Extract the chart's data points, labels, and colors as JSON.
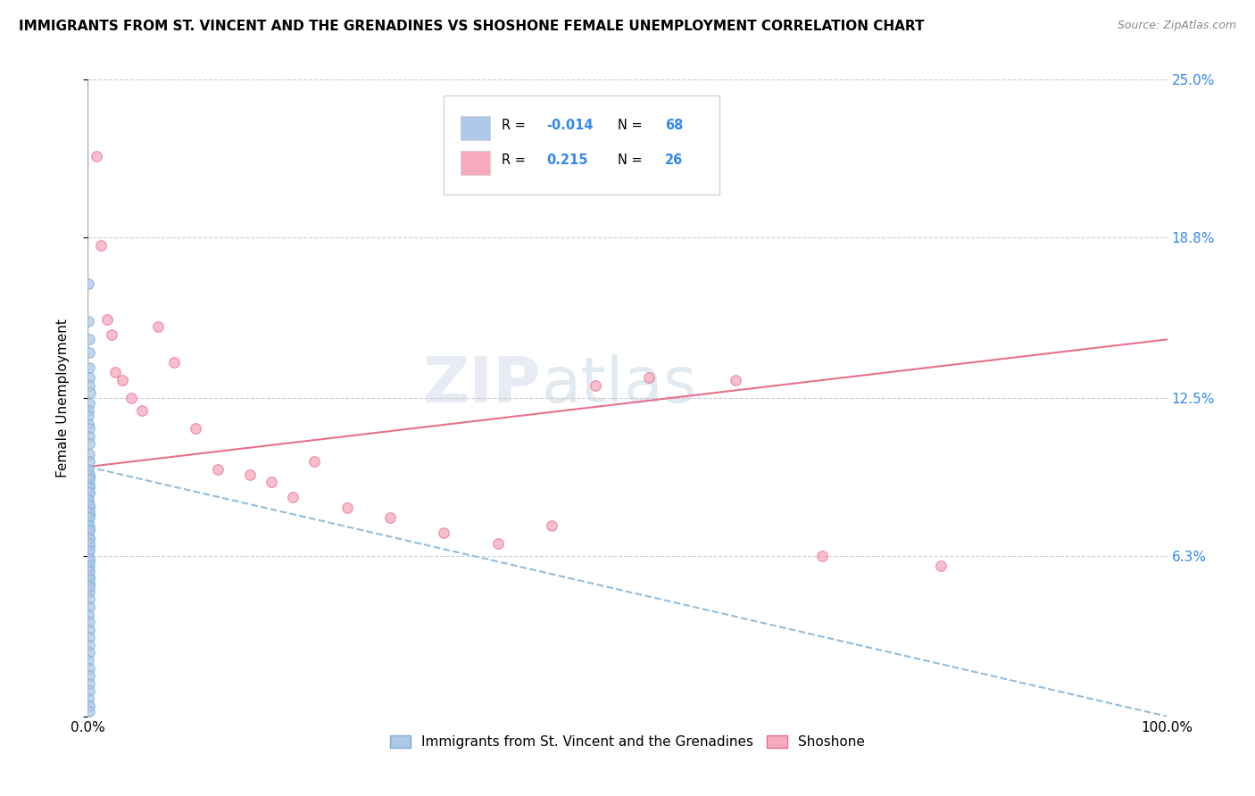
{
  "title": "IMMIGRANTS FROM ST. VINCENT AND THE GRENADINES VS SHOSHONE FEMALE UNEMPLOYMENT CORRELATION CHART",
  "source": "Source: ZipAtlas.com",
  "ylabel": "Female Unemployment",
  "xlim": [
    0.0,
    1.0
  ],
  "ylim": [
    0.0,
    0.25
  ],
  "yticks": [
    0.0,
    0.063,
    0.125,
    0.188,
    0.25
  ],
  "ytick_labels": [
    "",
    "6.3%",
    "12.5%",
    "18.8%",
    "25.0%"
  ],
  "xtick_labels": [
    "0.0%",
    "100.0%"
  ],
  "blue_R": "-0.014",
  "blue_N": "68",
  "pink_R": "0.215",
  "pink_N": "26",
  "blue_color": "#adc8e8",
  "pink_color": "#f5aabe",
  "blue_edge_color": "#7aaed4",
  "pink_edge_color": "#e8708a",
  "legend_blue_label": "Immigrants from St. Vincent and the Grenadines",
  "legend_pink_label": "Shoshone",
  "blue_scatter_x": [
    0.0005,
    0.0008,
    0.001,
    0.001,
    0.001,
    0.0012,
    0.0015,
    0.002,
    0.001,
    0.0007,
    0.0005,
    0.0008,
    0.001,
    0.001,
    0.0012,
    0.0015,
    0.001,
    0.0007,
    0.001,
    0.001,
    0.001,
    0.0008,
    0.001,
    0.001,
    0.0005,
    0.001,
    0.0015,
    0.001,
    0.0008,
    0.001,
    0.0005,
    0.001,
    0.001,
    0.001,
    0.0012,
    0.001,
    0.0008,
    0.001,
    0.001,
    0.0015,
    0.001,
    0.001,
    0.0008,
    0.001,
    0.001,
    0.0015,
    0.001,
    0.0007,
    0.001,
    0.001,
    0.001,
    0.0012,
    0.001,
    0.001,
    0.0005,
    0.001,
    0.0015,
    0.001,
    0.001,
    0.0012,
    0.001,
    0.0015,
    0.001,
    0.001,
    0.001,
    0.0012,
    0.001,
    0.001
  ],
  "blue_scatter_y": [
    0.17,
    0.155,
    0.148,
    0.143,
    0.137,
    0.133,
    0.13,
    0.127,
    0.123,
    0.12,
    0.118,
    0.115,
    0.113,
    0.11,
    0.107,
    0.103,
    0.1,
    0.097,
    0.094,
    0.091,
    0.088,
    0.085,
    0.082,
    0.079,
    0.076,
    0.073,
    0.07,
    0.067,
    0.064,
    0.061,
    0.058,
    0.055,
    0.052,
    0.049,
    0.046,
    0.043,
    0.04,
    0.037,
    0.034,
    0.031,
    0.028,
    0.025,
    0.022,
    0.019,
    0.016,
    0.013,
    0.01,
    0.007,
    0.004,
    0.002,
    0.095,
    0.093,
    0.09,
    0.088,
    0.085,
    0.083,
    0.08,
    0.078,
    0.075,
    0.073,
    0.07,
    0.068,
    0.065,
    0.062,
    0.059,
    0.057,
    0.054,
    0.051
  ],
  "pink_scatter_x": [
    0.008,
    0.012,
    0.018,
    0.022,
    0.025,
    0.032,
    0.04,
    0.05,
    0.065,
    0.08,
    0.1,
    0.12,
    0.15,
    0.17,
    0.19,
    0.21,
    0.24,
    0.28,
    0.33,
    0.38,
    0.43,
    0.47,
    0.52,
    0.6,
    0.68,
    0.79
  ],
  "pink_scatter_y": [
    0.22,
    0.185,
    0.156,
    0.15,
    0.135,
    0.132,
    0.125,
    0.12,
    0.153,
    0.139,
    0.113,
    0.097,
    0.095,
    0.092,
    0.086,
    0.1,
    0.082,
    0.078,
    0.072,
    0.068,
    0.075,
    0.13,
    0.133,
    0.132,
    0.063,
    0.059
  ],
  "blue_trendline_x": [
    0.0,
    1.0
  ],
  "blue_trendline_y": [
    0.098,
    0.0
  ],
  "pink_trendline_x": [
    0.0,
    1.0
  ],
  "pink_trendline_y": [
    0.098,
    0.148
  ]
}
